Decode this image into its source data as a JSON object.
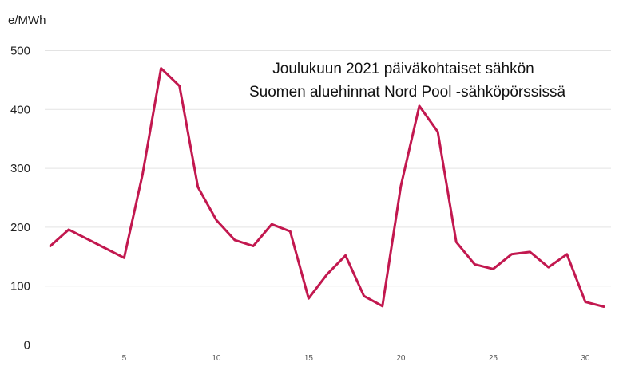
{
  "chart_data": {
    "type": "line",
    "title_lines": [
      "Joulukuun 2021 päiväkohtaiset sähkön",
      "Suomen aluehinnat Nord Pool -sähköpörssissä"
    ],
    "ylabel": "e/MWh",
    "xlabel": "",
    "xlim": [
      1,
      31
    ],
    "ylim": [
      0,
      500
    ],
    "x_ticks": [
      5,
      10,
      15,
      20,
      25,
      30
    ],
    "y_ticks": [
      0,
      100,
      200,
      300,
      400,
      500
    ],
    "grid": true,
    "line_color": "#c2184f",
    "x": [
      1,
      2,
      3,
      4,
      5,
      6,
      7,
      8,
      9,
      10,
      11,
      12,
      13,
      14,
      15,
      16,
      17,
      18,
      19,
      20,
      21,
      22,
      23,
      24,
      25,
      26,
      27,
      28,
      29,
      30,
      31
    ],
    "values": [
      168,
      196,
      180,
      164,
      148,
      290,
      470,
      440,
      268,
      212,
      178,
      168,
      205,
      193,
      79,
      120,
      152,
      83,
      66,
      270,
      406,
      362,
      175,
      137,
      129,
      154,
      158,
      132,
      154,
      73,
      65
    ]
  }
}
